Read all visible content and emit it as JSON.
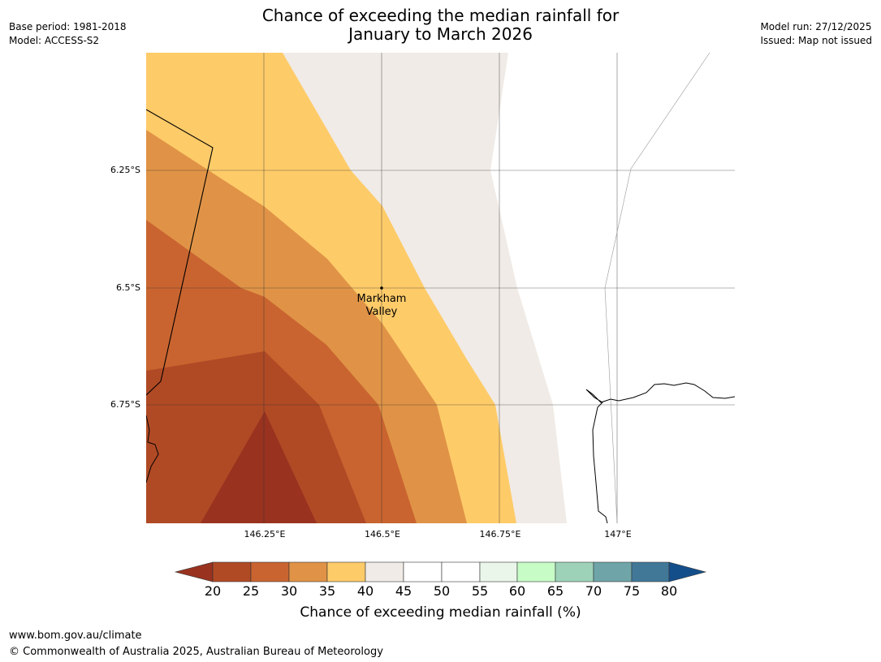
{
  "title": {
    "line1": "Chance of exceeding the median rainfall for",
    "line2": "January to March 2026"
  },
  "meta_left": {
    "base_period": "Base period: 1981-2018",
    "model": "Model: ACCESS-S2"
  },
  "meta_right": {
    "model_run": "Model run: 27/12/2025",
    "issued": "Issued: Map not issued"
  },
  "map": {
    "lat_labels": [
      "6.25°S",
      "6.5°S",
      "6.75°S"
    ],
    "lon_labels": [
      "146.25°E",
      "146.5°E",
      "146.75°E",
      "147°E"
    ],
    "place": {
      "name_line1": "Markham",
      "name_line2": "Valley"
    }
  },
  "colorbar": {
    "ticks": [
      "20",
      "25",
      "30",
      "35",
      "40",
      "45",
      "50",
      "55",
      "60",
      "65",
      "70",
      "75",
      "80"
    ],
    "colors": {
      "below_20": "#99321f",
      "c20_25": "#b04a25",
      "c25_30": "#c96430",
      "c30_35": "#e09346",
      "c35_40": "#fecb69",
      "c40_45": "#f0ebe6",
      "c45_50": "#ffffff",
      "c50_55": "#ffffff",
      "c55_60": "#eaf6ea",
      "c60_65": "#c7fcc7",
      "c65_70": "#9dd2b8",
      "c70_75": "#6fa5a8",
      "c75_80": "#417898",
      "above_80": "#144e8a"
    },
    "label": "Chance of exceeding median rainfall (%)"
  },
  "footer": {
    "url": "www.bom.gov.au/climate",
    "copyright": "© Commonwealth of Australia 2025, Australian Bureau of Meteorology"
  }
}
